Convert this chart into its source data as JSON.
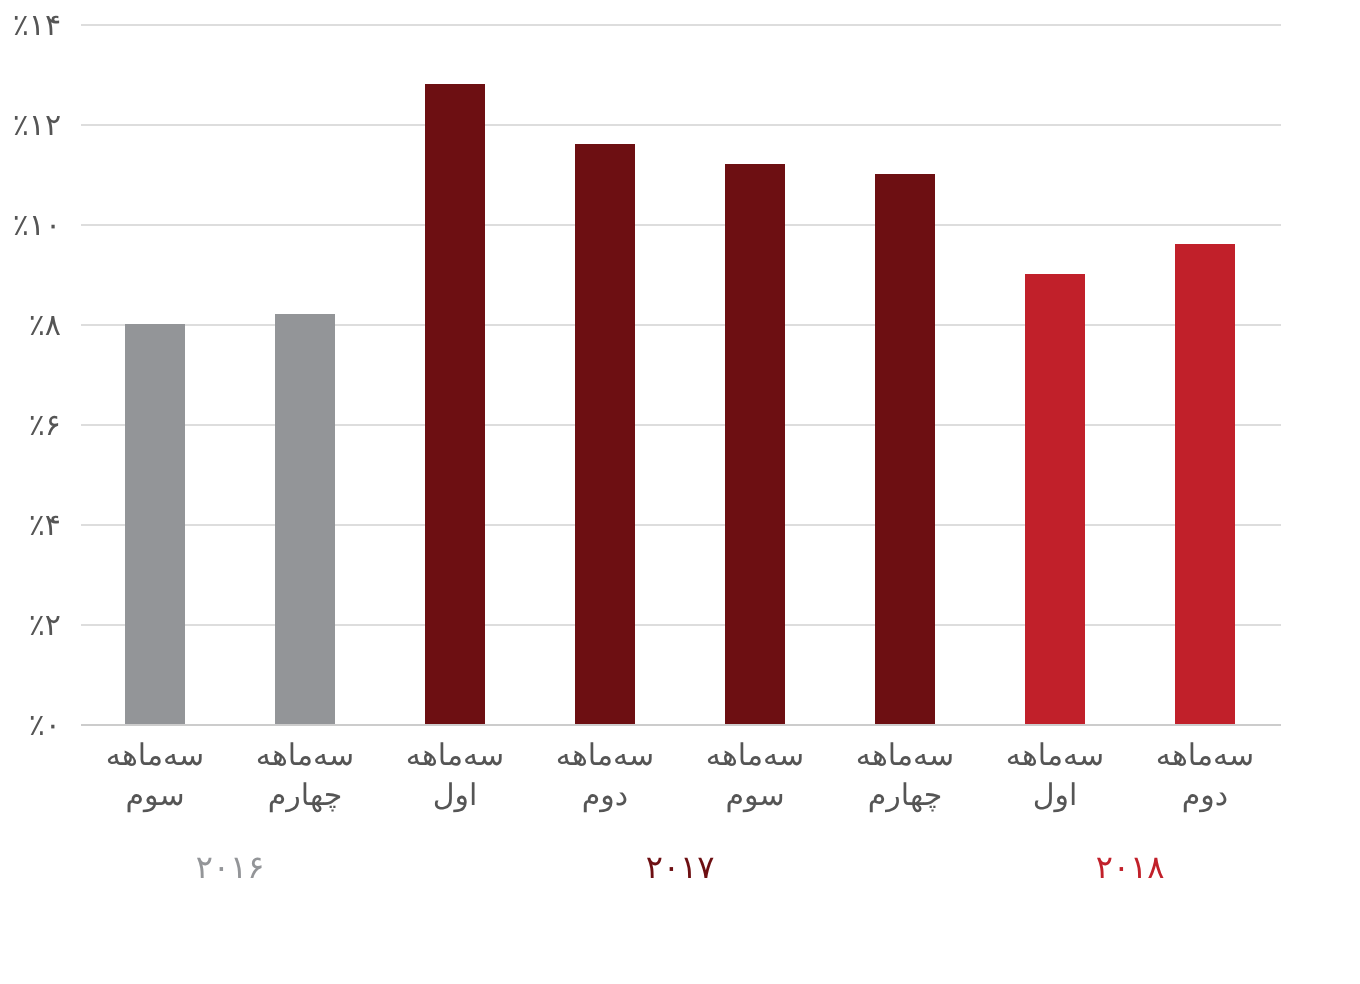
{
  "chart_data": {
    "type": "bar",
    "categories": [
      "سه‌ماهه سوم",
      "سه‌ماهه چهارم",
      "سه‌ماهه اول",
      "سه‌ماهه دوم",
      "سه‌ماهه سوم",
      "سه‌ماهه چهارم",
      "سه‌ماهه اول",
      "سه‌ماهه دوم"
    ],
    "series": [
      {
        "name": "۲۰۱۶",
        "color": "#939598",
        "values": [
          8.0,
          8.2,
          null,
          null,
          null,
          null,
          null,
          null
        ]
      },
      {
        "name": "۲۰۱۷",
        "color": "#6d0f12",
        "values": [
          null,
          null,
          12.8,
          11.6,
          11.2,
          11.0,
          null,
          null
        ]
      },
      {
        "name": "۲۰۱۸",
        "color": "#c1202a",
        "values": [
          null,
          null,
          null,
          null,
          null,
          null,
          9.0,
          9.6
        ]
      }
    ],
    "ylim": [
      0,
      14
    ],
    "yticks": [
      {
        "value": 0,
        "label": "٪۰"
      },
      {
        "value": 2,
        "label": "٪۲"
      },
      {
        "value": 4,
        "label": "٪۴"
      },
      {
        "value": 6,
        "label": "٪۶"
      },
      {
        "value": 8,
        "label": "٪۸"
      },
      {
        "value": 10,
        "label": "٪۱۰"
      },
      {
        "value": 12,
        "label": "٪۱۲"
      },
      {
        "value": 14,
        "label": "٪۱۴"
      }
    ],
    "grid": "y",
    "legend": false
  }
}
